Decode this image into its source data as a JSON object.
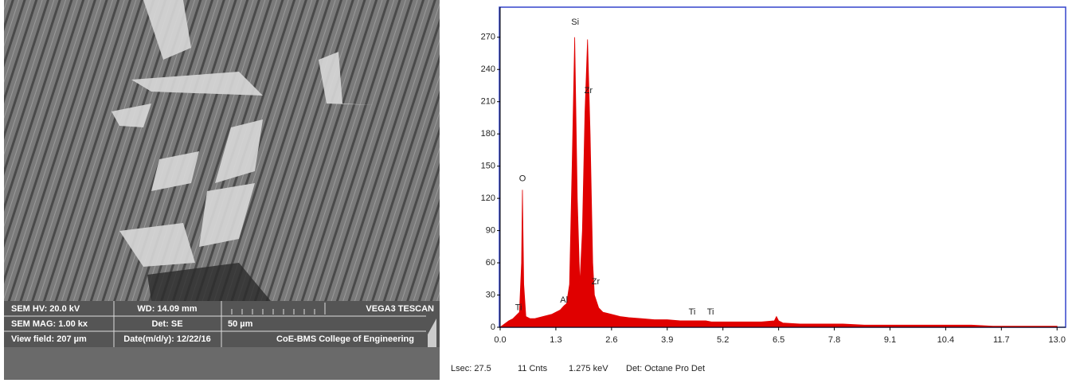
{
  "sem_info": {
    "hv": "SEM HV: 20.0 kV",
    "wd": "WD: 14.09 mm",
    "brand": "VEGA3 TESCAN",
    "mag": "SEM MAG: 1.00 kx",
    "det": "Det: SE",
    "scale": "50 µm",
    "view_field": "View field: 207 µm",
    "date": "Date(m/d/y): 12/22/16",
    "institution": "CoE-BMS College of Engineering"
  },
  "chart_data": {
    "type": "area",
    "x": [
      0.0,
      0.1,
      0.2,
      0.3,
      0.4,
      0.45,
      0.5,
      0.52,
      0.55,
      0.6,
      0.7,
      0.8,
      0.9,
      1.0,
      1.1,
      1.2,
      1.3,
      1.4,
      1.49,
      1.55,
      1.62,
      1.68,
      1.74,
      1.8,
      1.86,
      1.92,
      1.98,
      2.04,
      2.1,
      2.16,
      2.2,
      2.3,
      2.4,
      2.6,
      2.8,
      3.0,
      3.3,
      3.6,
      3.9,
      4.2,
      4.51,
      4.8,
      4.93,
      5.2,
      5.5,
      5.8,
      6.1,
      6.4,
      6.45,
      6.5,
      6.6,
      7.0,
      7.5,
      8.0,
      8.5,
      9.0,
      9.5,
      10.0,
      10.5,
      11.0,
      11.5,
      12.0,
      12.5,
      13.0
    ],
    "series": [
      {
        "color": "#e00000",
        "values": [
          0,
          3,
          6,
          8,
          12,
          14,
          60,
          128,
          40,
          10,
          8,
          8,
          9,
          10,
          11,
          12,
          14,
          16,
          20,
          22,
          40,
          150,
          270,
          120,
          40,
          90,
          200,
          268,
          180,
          60,
          30,
          18,
          14,
          12,
          10,
          9,
          8,
          7,
          7,
          6,
          6,
          6,
          5,
          5,
          5,
          5,
          5,
          6,
          10,
          6,
          4,
          3,
          3,
          3,
          2,
          2,
          2,
          2,
          2,
          2,
          1,
          1,
          1,
          1
        ]
      }
    ],
    "xlim": [
      0,
      13.2
    ],
    "ylim": [
      0,
      298
    ],
    "xticks": [
      {
        "value": 0,
        "label": "0.0"
      },
      1.3,
      2.6,
      3.9,
      5.2,
      6.5,
      7.8,
      9.1,
      10.4,
      11.7,
      {
        "value": 13,
        "label": "13.0"
      }
    ],
    "yticks": [
      0,
      30,
      60,
      90,
      120,
      150,
      180,
      210,
      240,
      270
    ],
    "peak_labels": [
      {
        "text": "Si",
        "x": 1.75,
        "y": 284
      },
      {
        "text": "Zr",
        "x": 2.06,
        "y": 220
      },
      {
        "text": "O",
        "x": 0.52,
        "y": 138
      },
      {
        "text": "Zr",
        "x": 2.23,
        "y": 42
      },
      {
        "text": "Al",
        "x": 1.49,
        "y": 25
      },
      {
        "text": "Ti",
        "x": 0.43,
        "y": 18
      },
      {
        "text": "Ti",
        "x": 4.48,
        "y": 14
      },
      {
        "text": "Ti",
        "x": 4.91,
        "y": 14
      }
    ]
  },
  "status_bar": {
    "lsec": "Lsec: 27.5",
    "counts": "11 Cnts",
    "energy": "1.275 keV",
    "detector": "Det: Octane Pro Det"
  }
}
